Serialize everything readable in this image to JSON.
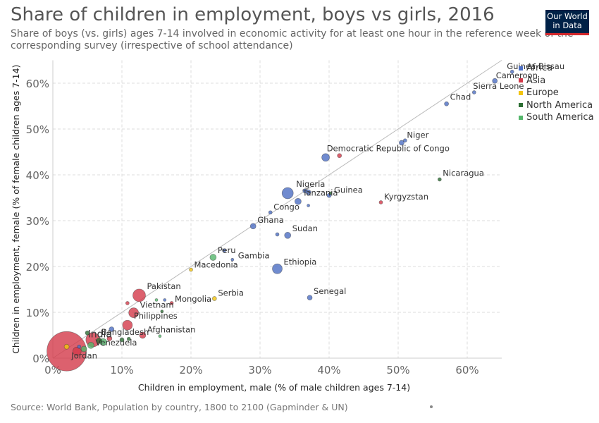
{
  "header": {
    "title": "Share of children in employment, boys vs girls, 2016",
    "subtitle": "Share of boys (vs. girls) ages 7-14 involved in economic activity for at least one hour in the reference week of the corresponding survey (irrespective of school attendance)"
  },
  "logo": {
    "line1": "Our World",
    "line2": "in Data"
  },
  "footer": {
    "source": "Source: World Bank, Population by country, 1800 to 2100 (Gapminder & UN)"
  },
  "chart_data": {
    "type": "scatter",
    "title": "Share of children in employment, boys vs girls, 2016",
    "xlabel": "Children in employment, male (% of male children ages 7-14)",
    "ylabel": "Children in employment, female (% of female children ages 7-14)",
    "xlim": [
      0,
      65
    ],
    "ylim": [
      0,
      65
    ],
    "x_ticks": [
      "0%",
      "10%",
      "20%",
      "30%",
      "40%",
      "50%",
      "60%"
    ],
    "y_ticks": [
      "0%",
      "10%",
      "20%",
      "30%",
      "40%",
      "50%",
      "60%"
    ],
    "grid": true,
    "reference_line": "y = x",
    "legend_position": "top-right",
    "legend": [
      {
        "name": "Africa",
        "color": "#4c6ec3"
      },
      {
        "name": "Asia",
        "color": "#d33a4a"
      },
      {
        "name": "Europe",
        "color": "#f2c40f"
      },
      {
        "name": "North America",
        "color": "#2c6e33"
      },
      {
        "name": "South America",
        "color": "#54b66b"
      }
    ],
    "points": [
      {
        "label": "Guinea-Bissau",
        "x": 66.5,
        "y": 62.5,
        "region": "Africa",
        "size": 2.5
      },
      {
        "label": "Cameroon",
        "x": 64.0,
        "y": 60.5,
        "region": "Africa",
        "size": 3.5
      },
      {
        "label": "Sierra Leone",
        "x": 61.0,
        "y": 58.0,
        "region": "Africa",
        "size": 2.5
      },
      {
        "label": "Chad",
        "x": 57.0,
        "y": 55.5,
        "region": "Africa",
        "size": 3
      },
      {
        "label": "Niger",
        "x": 50.5,
        "y": 47.0,
        "region": "Africa",
        "size": 3.5
      },
      {
        "label": "",
        "x": 51.0,
        "y": 47.5,
        "region": "Africa",
        "size": 2.5
      },
      {
        "label": "",
        "x": 39.5,
        "y": 43.8,
        "region": "Africa",
        "size": 5.5
      },
      {
        "label": "Democratic Republic of Congo",
        "x": 41.5,
        "y": 44.2,
        "region": "Asia",
        "size": 3
      },
      {
        "label": "Nicaragua",
        "x": 56.0,
        "y": 39.0,
        "region": "North America",
        "size": 2.5
      },
      {
        "label": "Nigeria",
        "x": 34.0,
        "y": 36.0,
        "region": "Africa",
        "size": 8
      },
      {
        "label": "",
        "x": 36.5,
        "y": 36.5,
        "region": "Africa",
        "size": 3
      },
      {
        "label": "",
        "x": 37.0,
        "y": 36.2,
        "region": "Africa",
        "size": 3.5
      },
      {
        "label": "Tanzania",
        "x": 35.5,
        "y": 34.2,
        "region": "Africa",
        "size": 4.5
      },
      {
        "label": "Guinea",
        "x": 40.0,
        "y": 35.5,
        "region": "Africa",
        "size": 3
      },
      {
        "label": "",
        "x": 40.2,
        "y": 36.0,
        "region": "North America",
        "size": 2
      },
      {
        "label": "Kyrgyzstan",
        "x": 47.5,
        "y": 34.0,
        "region": "Asia",
        "size": 2.5
      },
      {
        "label": "",
        "x": 37.0,
        "y": 33.3,
        "region": "Africa",
        "size": 2
      },
      {
        "label": "Congo",
        "x": 31.5,
        "y": 31.8,
        "region": "Africa",
        "size": 2.5
      },
      {
        "label": "Ghana",
        "x": 29.0,
        "y": 28.8,
        "region": "Africa",
        "size": 4
      },
      {
        "label": "",
        "x": 32.5,
        "y": 27.0,
        "region": "Africa",
        "size": 2.5
      },
      {
        "label": "Sudan",
        "x": 34.0,
        "y": 26.8,
        "region": "Africa",
        "size": 4.5
      },
      {
        "label": "",
        "x": 24.8,
        "y": 23.5,
        "region": "Africa",
        "size": 2.5
      },
      {
        "label": "Peru",
        "x": 23.2,
        "y": 22.0,
        "region": "South America",
        "size": 4.5
      },
      {
        "label": "Gambia",
        "x": 26.0,
        "y": 21.5,
        "region": "Africa",
        "size": 2
      },
      {
        "label": "Ethiopia",
        "x": 32.5,
        "y": 19.5,
        "region": "Africa",
        "size": 7
      },
      {
        "label": "Macedonia",
        "x": 20.0,
        "y": 19.3,
        "region": "Europe",
        "size": 2.5
      },
      {
        "label": "Senegal",
        "x": 37.2,
        "y": 13.2,
        "region": "Africa",
        "size": 3.5
      },
      {
        "label": "Serbia",
        "x": 23.4,
        "y": 13.0,
        "region": "Europe",
        "size": 3
      },
      {
        "label": "Pakistan",
        "x": 12.5,
        "y": 13.7,
        "region": "Asia",
        "size": 9
      },
      {
        "label": "",
        "x": 15.0,
        "y": 12.7,
        "region": "South America",
        "size": 2
      },
      {
        "label": "",
        "x": 16.2,
        "y": 12.7,
        "region": "Africa",
        "size": 2
      },
      {
        "label": "",
        "x": 10.8,
        "y": 12.0,
        "region": "Asia",
        "size": 2.5
      },
      {
        "label": "Mongolia",
        "x": 17.2,
        "y": 12.0,
        "region": "Asia",
        "size": 2.5
      },
      {
        "label": "Vietnam",
        "x": 11.7,
        "y": 9.9,
        "region": "Asia",
        "size": 7
      },
      {
        "label": "",
        "x": 15.8,
        "y": 10.2,
        "region": "North America",
        "size": 2
      },
      {
        "label": "Philippines",
        "x": 10.8,
        "y": 7.2,
        "region": "Asia",
        "size": 7
      },
      {
        "label": "Afghanistan",
        "x": 13.0,
        "y": 5.0,
        "region": "Asia",
        "size": 4.5
      },
      {
        "label": "",
        "x": 15.5,
        "y": 4.8,
        "region": "South America",
        "size": 2
      },
      {
        "label": "",
        "x": 8.5,
        "y": 6.3,
        "region": "Africa",
        "size": 3.5
      },
      {
        "label": "Bangladesh",
        "x": 5.8,
        "y": 4.0,
        "region": "Asia",
        "size": 10
      },
      {
        "label": "",
        "x": 8.2,
        "y": 4.3,
        "region": "Asia",
        "size": 3.5
      },
      {
        "label": "",
        "x": 10.0,
        "y": 4.0,
        "region": "North America",
        "size": 3
      },
      {
        "label": "",
        "x": 11.0,
        "y": 4.2,
        "region": "North America",
        "size": 2.5
      },
      {
        "label": "",
        "x": 7.3,
        "y": 3.5,
        "region": "South America",
        "size": 5
      },
      {
        "label": "",
        "x": 6.7,
        "y": 3.8,
        "region": "North America",
        "size": 4
      },
      {
        "label": "Venezuela",
        "x": 5.5,
        "y": 2.8,
        "region": "South America",
        "size": 4.5
      },
      {
        "label": "",
        "x": 4.5,
        "y": 2.0,
        "region": "South America",
        "size": 4
      },
      {
        "label": "Jordan",
        "x": 3.5,
        "y": 1.5,
        "region": "Asia",
        "size": 6
      },
      {
        "label": "India",
        "x": 2.0,
        "y": 1.5,
        "region": "Asia",
        "size": 28
      },
      {
        "label": "",
        "x": 2.0,
        "y": 2.5,
        "region": "Europe",
        "size": 3.5
      },
      {
        "label": "",
        "x": 3.8,
        "y": 2.5,
        "region": "Africa",
        "size": 2.5
      },
      {
        "label": "",
        "x": 5.0,
        "y": 5.5,
        "region": "North America",
        "size": 3
      }
    ]
  }
}
